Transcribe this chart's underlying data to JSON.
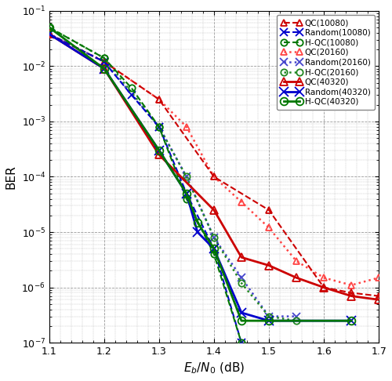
{
  "xlabel": "E_b/N_0 (dB)",
  "ylabel": "BER",
  "xlim": [
    1.1,
    1.7
  ],
  "ylim": [
    1e-07,
    0.1
  ],
  "curves": [
    {
      "key": "QC_10080",
      "x": [
        1.1,
        1.2,
        1.3,
        1.4,
        1.5,
        1.6,
        1.65,
        1.7
      ],
      "y": [
        0.038,
        0.012,
        0.0025,
        0.0001,
        2.5e-05,
        1e-06,
        8e-07,
        7e-07
      ],
      "color": "#cc0000",
      "linestyle": "--",
      "marker": "^",
      "label": "QC(10080)",
      "linewidth": 1.5,
      "markersize": 6,
      "markerfacecolor": "none",
      "markeredgecolor": "#cc0000",
      "zorder": 4
    },
    {
      "key": "Random_10080",
      "x": [
        1.1,
        1.2,
        1.25,
        1.3,
        1.35,
        1.4,
        1.45
      ],
      "y": [
        0.038,
        0.012,
        0.003,
        0.0008,
        5e-05,
        5e-06,
        1e-07
      ],
      "color": "#0000cc",
      "linestyle": "--",
      "marker": "x",
      "label": "Random(10080)",
      "linewidth": 1.5,
      "markersize": 7,
      "markerfacecolor": "#0000cc",
      "markeredgecolor": "#0000cc",
      "zorder": 4
    },
    {
      "key": "HQC_10080",
      "x": [
        1.1,
        1.2,
        1.25,
        1.3,
        1.35,
        1.4,
        1.45
      ],
      "y": [
        0.05,
        0.014,
        0.004,
        0.0008,
        4e-05,
        4e-06,
        1e-07
      ],
      "color": "#007700",
      "linestyle": "--",
      "marker": "o",
      "label": "H-QC(10080)",
      "linewidth": 1.5,
      "markersize": 6,
      "markerfacecolor": "none",
      "markeredgecolor": "#007700",
      "zorder": 4
    },
    {
      "key": "QC_20160",
      "x": [
        1.1,
        1.2,
        1.3,
        1.35,
        1.4,
        1.45,
        1.5,
        1.55,
        1.6,
        1.65,
        1.7
      ],
      "y": [
        0.038,
        0.012,
        0.0025,
        0.0008,
        0.0001,
        3.5e-05,
        1.2e-05,
        3e-06,
        1.5e-06,
        1.1e-06,
        1.5e-06
      ],
      "color": "#ff4444",
      "linestyle": ":",
      "marker": "^",
      "label": "QC(20160)",
      "linewidth": 1.8,
      "markersize": 6,
      "markerfacecolor": "none",
      "markeredgecolor": "#ff4444",
      "zorder": 3
    },
    {
      "key": "Random_20160",
      "x": [
        1.1,
        1.2,
        1.3,
        1.35,
        1.4,
        1.45,
        1.5,
        1.55
      ],
      "y": [
        0.038,
        0.012,
        0.0008,
        0.0001,
        8e-06,
        1.5e-06,
        3e-07,
        3e-07
      ],
      "color": "#4444cc",
      "linestyle": ":",
      "marker": "x",
      "label": "Random(20160)",
      "linewidth": 1.8,
      "markersize": 7,
      "markerfacecolor": "#4444cc",
      "markeredgecolor": "#4444cc",
      "zorder": 3
    },
    {
      "key": "HQC_20160",
      "x": [
        1.1,
        1.2,
        1.3,
        1.35,
        1.4,
        1.45,
        1.5,
        1.55
      ],
      "y": [
        0.05,
        0.014,
        0.0008,
        0.0001,
        8e-06,
        1.2e-06,
        3e-07,
        2.5e-07
      ],
      "color": "#228822",
      "linestyle": ":",
      "marker": "o",
      "label": "H-QC(20160)",
      "linewidth": 1.8,
      "markersize": 6,
      "markerfacecolor": "none",
      "markeredgecolor": "#228822",
      "zorder": 3
    },
    {
      "key": "QC_40320",
      "x": [
        1.1,
        1.2,
        1.3,
        1.4,
        1.45,
        1.5,
        1.55,
        1.6,
        1.65,
        1.7
      ],
      "y": [
        0.038,
        0.009,
        0.00025,
        2.5e-05,
        3.5e-06,
        2.5e-06,
        1.5e-06,
        1e-06,
        7e-07,
        6e-07
      ],
      "color": "#cc0000",
      "linestyle": "-",
      "marker": "^",
      "label": "QC(40320)",
      "linewidth": 2.0,
      "markersize": 7,
      "markerfacecolor": "none",
      "markeredgecolor": "#cc0000",
      "zorder": 5
    },
    {
      "key": "Random_40320",
      "x": [
        1.1,
        1.2,
        1.3,
        1.35,
        1.37,
        1.4,
        1.45,
        1.5,
        1.65
      ],
      "y": [
        0.038,
        0.009,
        0.0003,
        5e-05,
        1e-05,
        5e-06,
        3.5e-07,
        2.5e-07,
        2.5e-07
      ],
      "color": "#0000cc",
      "linestyle": "-",
      "marker": "x",
      "label": "Random(40320)",
      "linewidth": 2.0,
      "markersize": 8,
      "markerfacecolor": "#0000cc",
      "markeredgecolor": "#0000cc",
      "zorder": 5
    },
    {
      "key": "HQC_40320",
      "x": [
        1.1,
        1.2,
        1.3,
        1.35,
        1.37,
        1.4,
        1.45,
        1.5,
        1.65
      ],
      "y": [
        0.05,
        0.009,
        0.0003,
        5e-05,
        1.5e-05,
        5e-06,
        2.5e-07,
        2.5e-07,
        2.5e-07
      ],
      "color": "#007700",
      "linestyle": "-",
      "marker": "o",
      "label": "H-QC(40320)",
      "linewidth": 2.0,
      "markersize": 7,
      "markerfacecolor": "none",
      "markeredgecolor": "#007700",
      "zorder": 5
    }
  ]
}
